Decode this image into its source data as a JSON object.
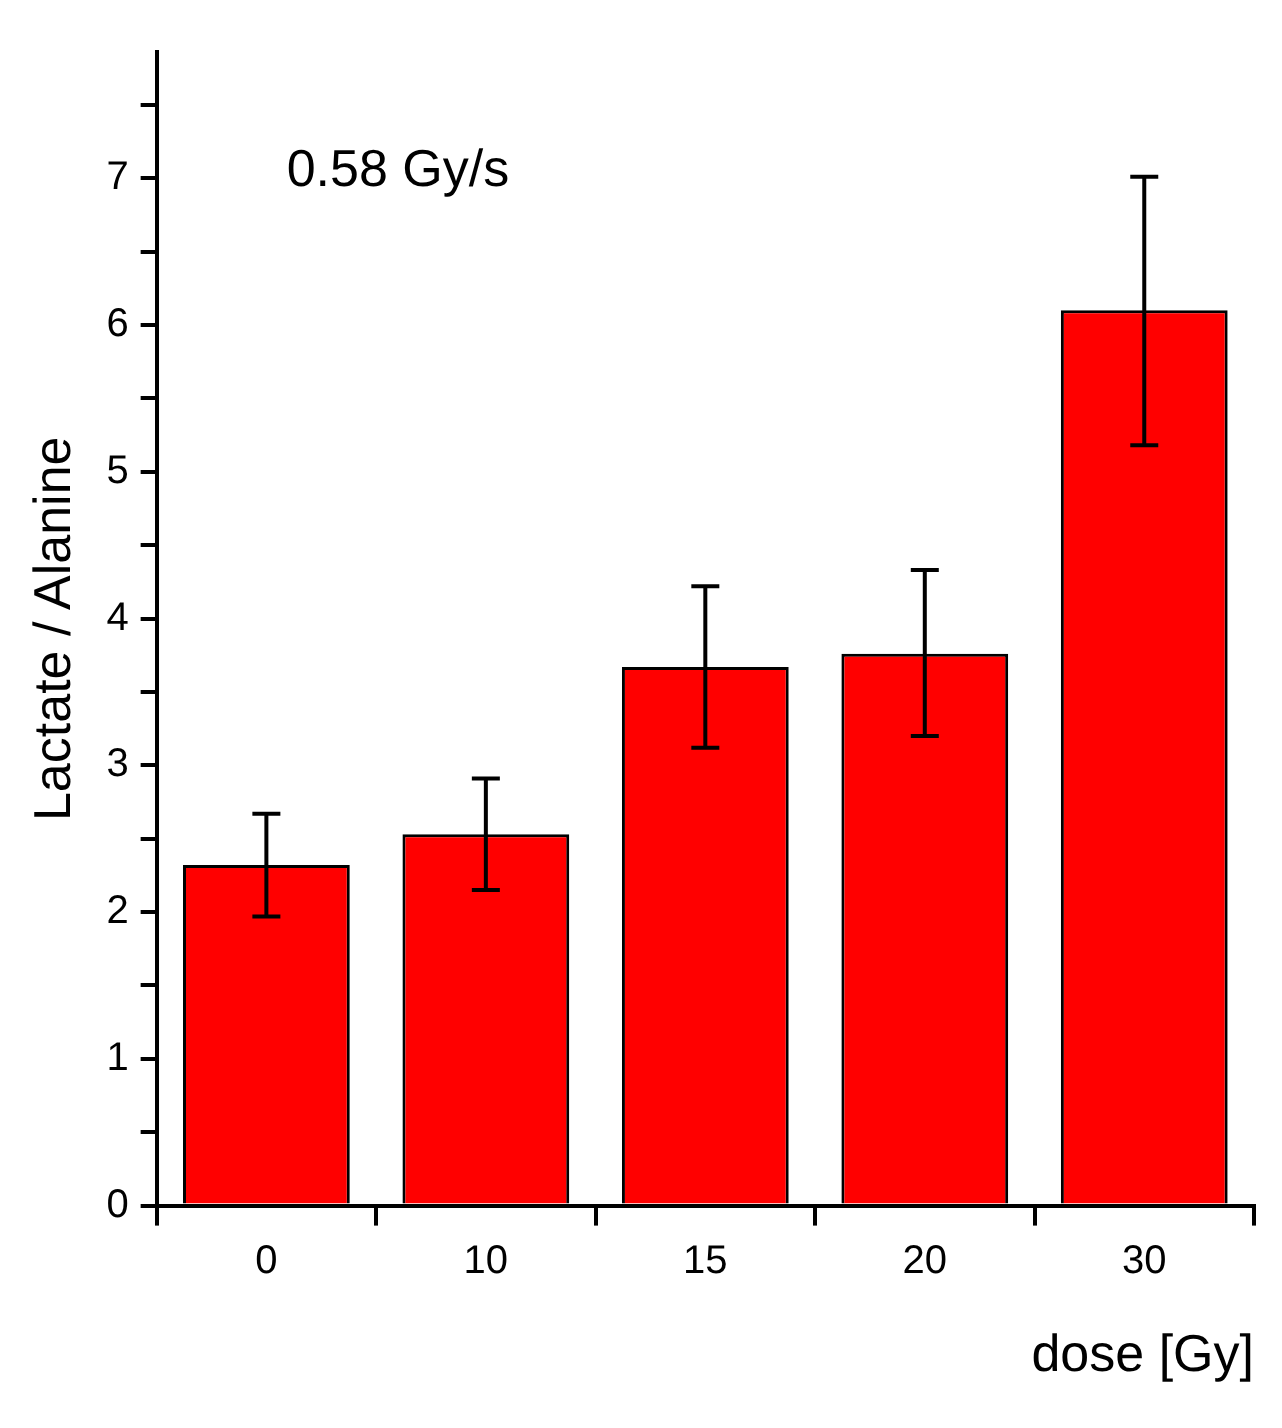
{
  "chart_data": {
    "type": "bar",
    "categories": [
      "0",
      "10",
      "15",
      "20",
      "30"
    ],
    "values": [
      2.32,
      2.53,
      3.67,
      3.76,
      6.1
    ],
    "errors": [
      [
        1.97,
        2.67
      ],
      [
        2.15,
        2.91
      ],
      [
        3.12,
        4.22
      ],
      [
        3.2,
        4.33
      ],
      [
        5.18,
        7.01
      ]
    ],
    "color": "#ff0000",
    "xlabel": "dose [Gy]",
    "ylabel": "Lactate / Alanine",
    "ylim": [
      0,
      7.86
    ],
    "yticks": [
      0,
      {
        "value": 0.5,
        "label": null
      },
      1,
      {
        "value": 1.5,
        "label": null
      },
      2,
      {
        "value": 2.5,
        "label": null
      },
      3,
      {
        "value": 3.5,
        "label": null
      },
      4,
      {
        "value": 4.5,
        "label": null
      },
      5,
      {
        "value": 5.5,
        "label": null
      },
      6,
      {
        "value": 6.5,
        "label": null
      },
      7,
      {
        "value": 7.5,
        "label": null
      }
    ],
    "annotations": [
      "0.58 Gy/s"
    ],
    "grid": false,
    "legend": false
  }
}
